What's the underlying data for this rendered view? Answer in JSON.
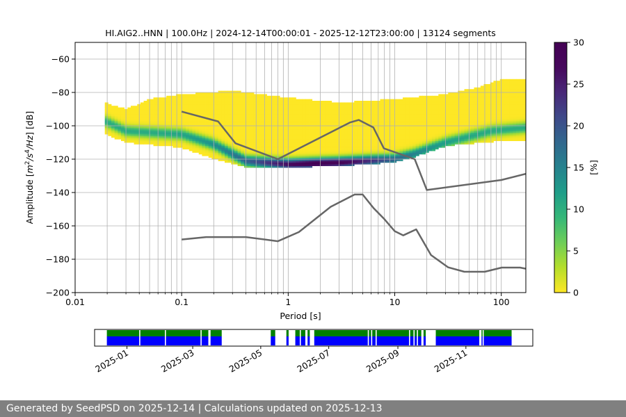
{
  "chart_data": [
    {
      "type": "heatmap",
      "title": "HI.AIG2..HNN | 100.0Hz | 2024-12-14T00:00:01 - 2025-12-12T23:00:00 | 13124 segments",
      "xlabel": "Period [s]",
      "ylabel_parts": [
        "Amplitude [",
        "m",
        "2",
        "/s",
        "4",
        "/Hz",
        "] [dB]"
      ],
      "xscale": "log",
      "xlim": [
        0.01,
        170
      ],
      "ylim": [
        -200,
        -50
      ],
      "xticks": [
        0.01,
        0.1,
        1,
        10,
        100
      ],
      "xtick_labels": [
        "0.01",
        "0.1",
        "1",
        "10",
        "100"
      ],
      "yticks": [
        -200,
        -180,
        -160,
        -140,
        -120,
        -100,
        -80,
        -60
      ],
      "ytick_labels": [
        "−200",
        "−180",
        "−160",
        "−140",
        "−120",
        "−100",
        "−80",
        "−60"
      ],
      "grid": true,
      "colorbar": {
        "label": "[%]",
        "range": [
          0,
          30
        ],
        "ticks": [
          0,
          5,
          10,
          15,
          20,
          25,
          30
        ],
        "tick_labels": [
          "0",
          "5",
          "10",
          "15",
          "20",
          "25",
          "30"
        ],
        "colormap": "viridis-reversed"
      },
      "psd_density": {
        "period_range": [
          0.019,
          170
        ],
        "mode_db": [
          [
            0.019,
            -97
          ],
          [
            0.03,
            -103
          ],
          [
            0.1,
            -105
          ],
          [
            0.2,
            -111
          ],
          [
            0.4,
            -121
          ],
          [
            1,
            -123
          ],
          [
            3,
            -122
          ],
          [
            10,
            -120
          ],
          [
            15,
            -117
          ],
          [
            30,
            -110
          ],
          [
            80,
            -103
          ],
          [
            170,
            -101
          ]
        ],
        "upper_db": [
          [
            0.019,
            -86
          ],
          [
            0.03,
            -90
          ],
          [
            0.05,
            -84
          ],
          [
            0.1,
            -81
          ],
          [
            0.3,
            -79
          ],
          [
            1,
            -83
          ],
          [
            3,
            -86
          ],
          [
            10,
            -84
          ],
          [
            30,
            -81
          ],
          [
            60,
            -77
          ],
          [
            100,
            -72
          ],
          [
            170,
            -72
          ]
        ],
        "lower_db": [
          [
            0.019,
            -105
          ],
          [
            0.03,
            -110
          ],
          [
            0.1,
            -113
          ],
          [
            0.2,
            -120
          ],
          [
            0.4,
            -125
          ],
          [
            1,
            -125
          ],
          [
            3,
            -124
          ],
          [
            10,
            -122
          ],
          [
            15,
            -119
          ],
          [
            30,
            -112
          ],
          [
            100,
            -109
          ],
          [
            170,
            -109
          ]
        ]
      },
      "series": [
        {
          "values": [
            [
              0.1,
              -91.5
            ],
            [
              0.22,
              -97.4
            ],
            [
              0.32,
              -110.5
            ],
            [
              0.8,
              -120
            ],
            [
              3.8,
              -98
            ],
            [
              4.6,
              -96.5
            ],
            [
              6.3,
              -101
            ],
            [
              7.9,
              -113.5
            ],
            [
              15.4,
              -120
            ],
            [
              20,
              -138.5
            ],
            [
              100,
              -132.5
            ],
            [
              170,
              -128.8
            ]
          ],
          "color": "#666666"
        },
        {
          "values": [
            [
              0.1,
              -168.2
            ],
            [
              0.17,
              -166.7
            ],
            [
              0.4,
              -166.7
            ],
            [
              0.8,
              -169.2
            ],
            [
              1.26,
              -163.7
            ],
            [
              2.5,
              -148.6
            ],
            [
              4.2,
              -141.2
            ],
            [
              5,
              -141.2
            ],
            [
              6.3,
              -149.2
            ],
            [
              7.9,
              -155.6
            ],
            [
              10,
              -163.2
            ],
            [
              12,
              -165.7
            ],
            [
              15.9,
              -162.1
            ],
            [
              21.9,
              -177.5
            ],
            [
              31.6,
              -184.8
            ],
            [
              45,
              -187.5
            ],
            [
              70,
              -187.5
            ],
            [
              101,
              -185
            ],
            [
              150,
              -185
            ],
            [
              170,
              -185.7
            ]
          ],
          "color": "#666666"
        }
      ]
    },
    {
      "type": "timeline",
      "xticks": [
        "2025-01",
        "2025-03",
        "2025-05",
        "2025-07",
        "2025-09",
        "2025-11"
      ],
      "xlim": [
        "2024-12-03",
        "2025-12-31"
      ],
      "gaps": [
        [
          "2025-01-12",
          "2025-01-13"
        ],
        [
          "2025-02-04",
          "2025-02-05"
        ],
        [
          "2025-03-08",
          "2025-03-09"
        ],
        [
          "2025-03-15",
          "2025-03-17"
        ],
        [
          "2025-03-27",
          "2025-05-10"
        ],
        [
          "2025-05-14",
          "2025-05-24"
        ],
        [
          "2025-05-26",
          "2025-06-01"
        ],
        [
          "2025-06-05",
          "2025-06-06"
        ],
        [
          "2025-06-10",
          "2025-06-12"
        ],
        [
          "2025-06-14",
          "2025-06-18"
        ],
        [
          "2025-08-05",
          "2025-08-06"
        ],
        [
          "2025-08-08",
          "2025-08-09"
        ],
        [
          "2025-08-12",
          "2025-08-13"
        ],
        [
          "2025-09-11",
          "2025-09-12"
        ],
        [
          "2025-09-15",
          "2025-09-16"
        ],
        [
          "2025-09-18",
          "2025-09-19"
        ],
        [
          "2025-09-22",
          "2025-09-24"
        ],
        [
          "2025-09-26",
          "2025-10-05"
        ],
        [
          "2025-11-13",
          "2025-11-15"
        ],
        [
          "2025-11-16",
          "2025-11-17"
        ]
      ],
      "data_range": [
        "2024-12-14",
        "2025-12-12"
      ],
      "colors": {
        "top": "#008000",
        "bottom": "#0000ff"
      }
    }
  ],
  "footer": {
    "text": "Generated by SeedPSD on 2025-12-14 | Calculations updated on 2025-12-13"
  }
}
